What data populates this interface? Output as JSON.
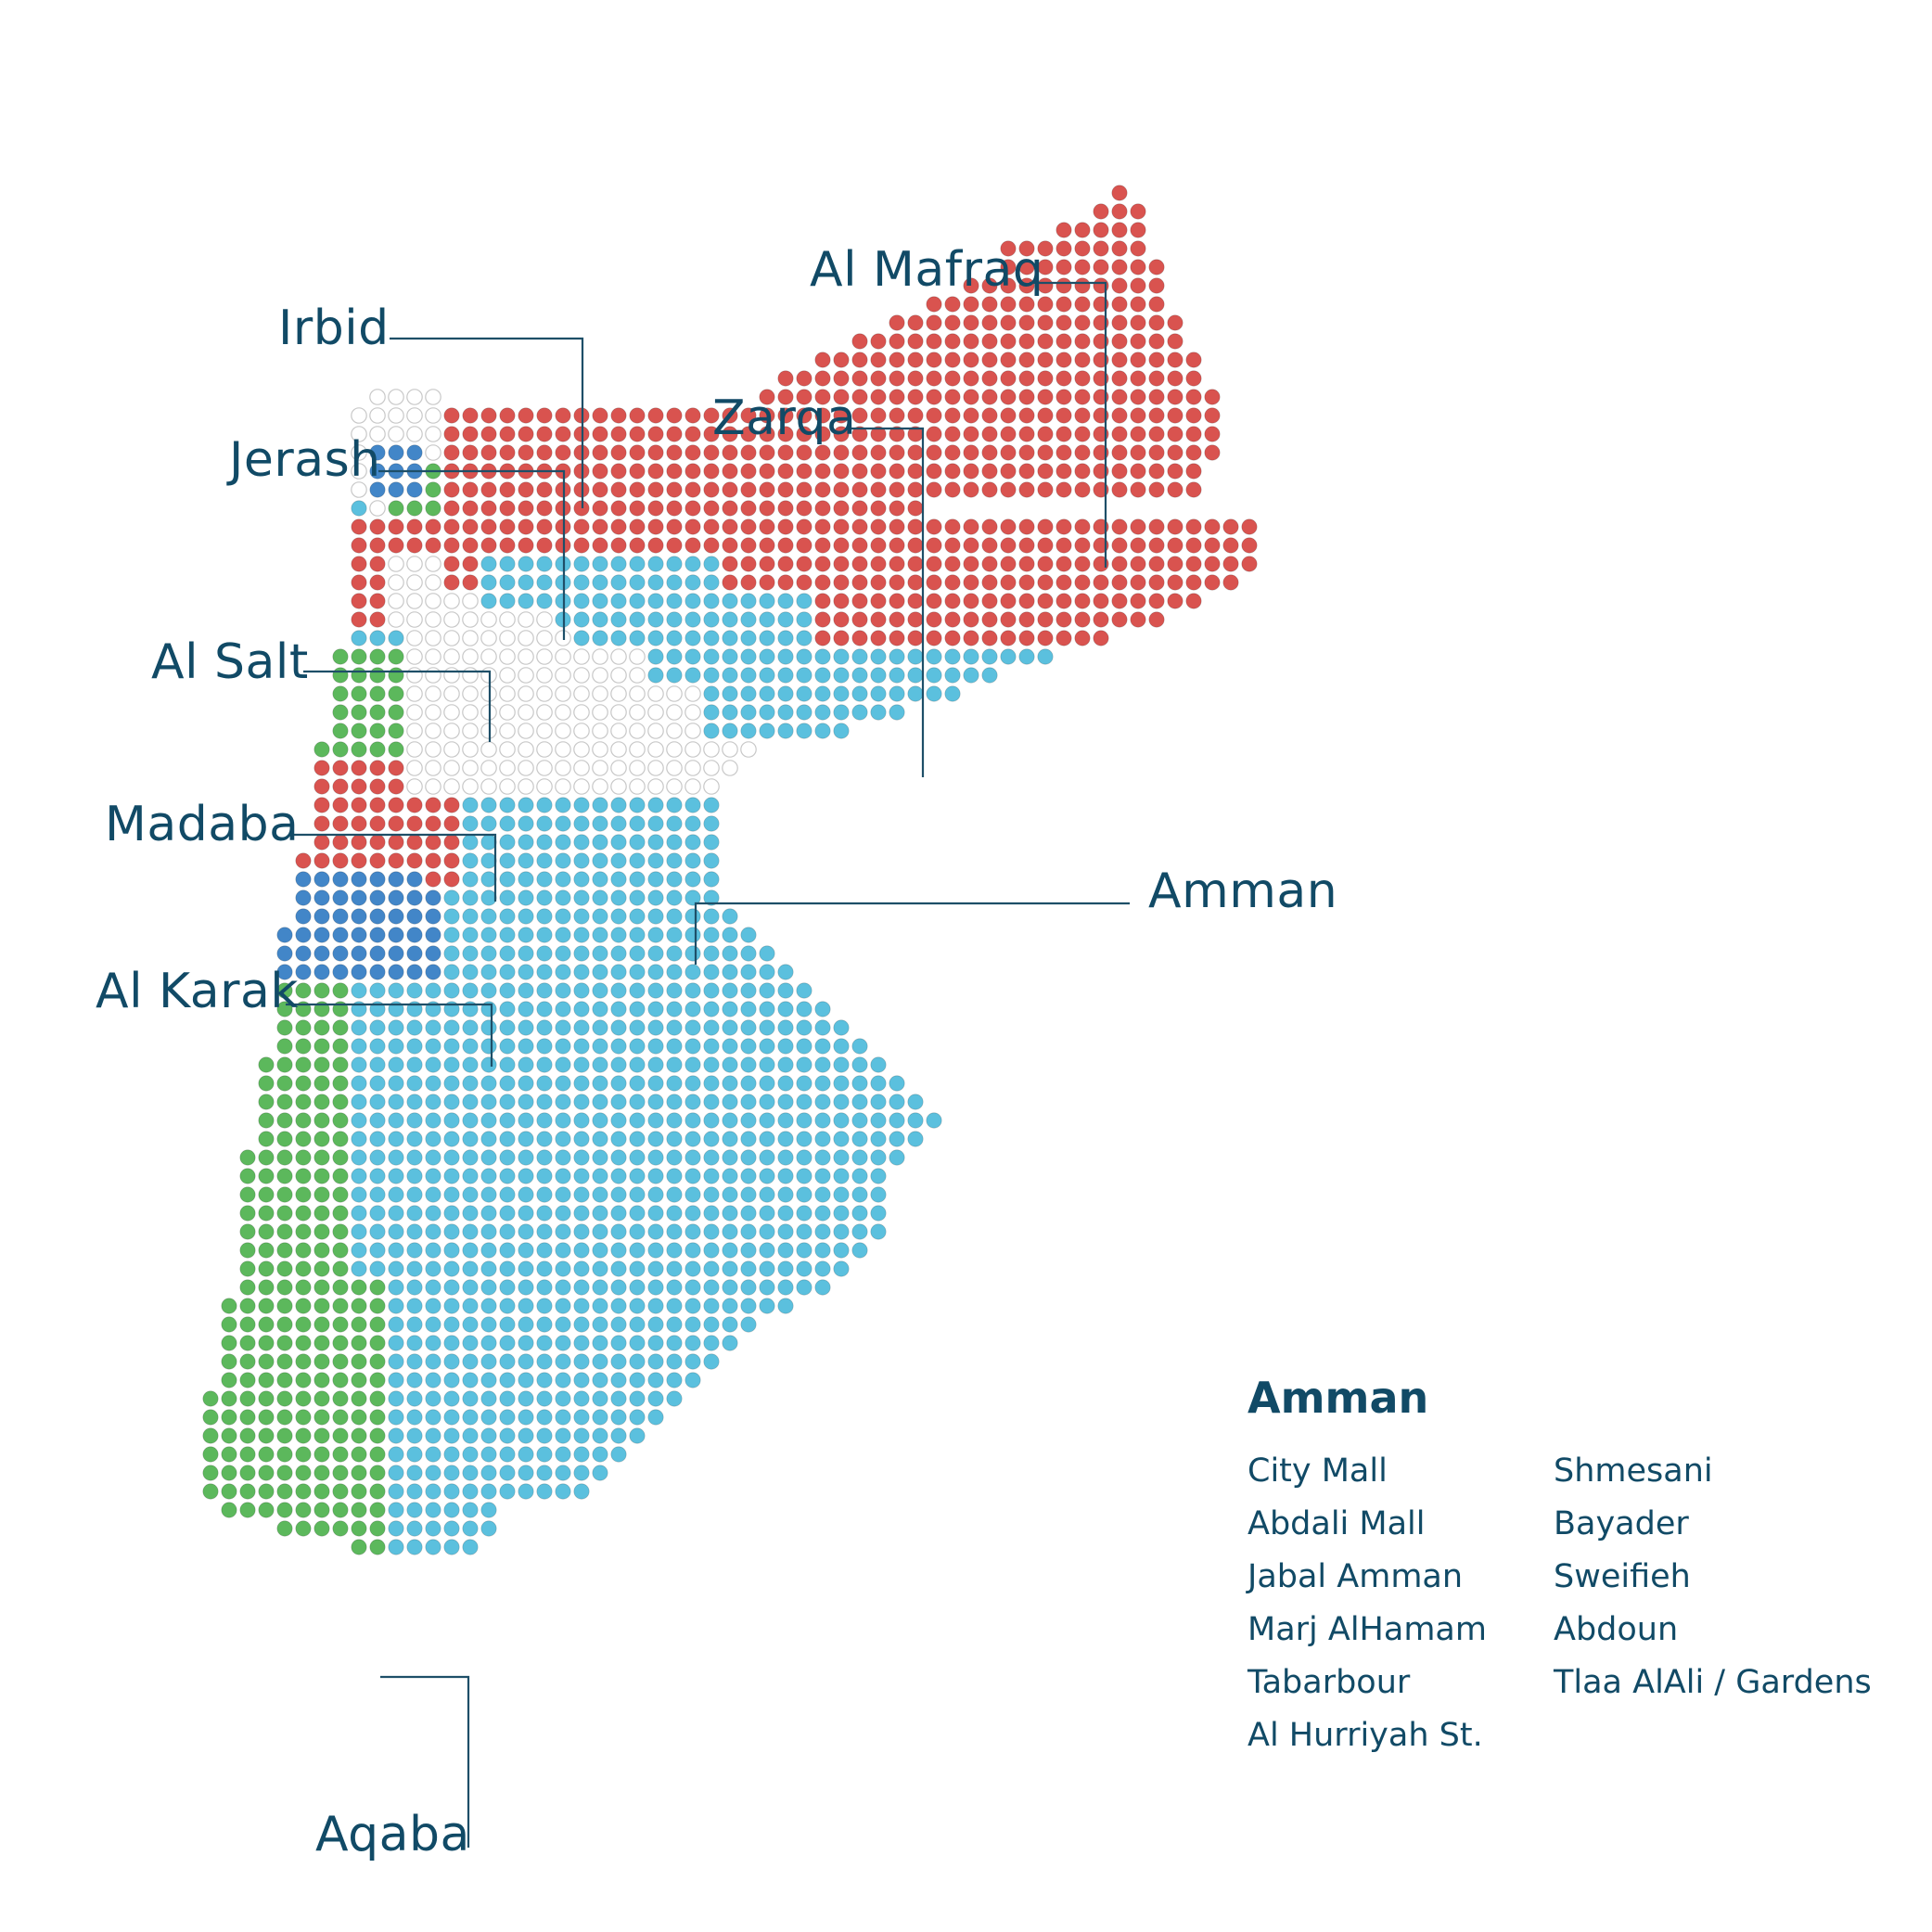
{
  "colors": {
    "red": "#d9534f",
    "light_blue": "#5bc0de",
    "dark_blue": "#4286c8",
    "green": "#5cb85c",
    "empty": "#ffffff",
    "empty_stroke": "#c8c8c8",
    "text": "#114a66"
  },
  "regions": [
    {
      "label": "Irbid"
    },
    {
      "label": "Jerash"
    },
    {
      "label": "Al Salt"
    },
    {
      "label": "Madaba"
    },
    {
      "label": "Al Karak"
    },
    {
      "label": "Aqaba"
    },
    {
      "label": "Al Mafraq"
    },
    {
      "label": "Zarqa"
    },
    {
      "label": "Amman"
    }
  ],
  "legend": {
    "title": "Amman",
    "col1": [
      "City Mall",
      "Abdali Mall",
      "Jabal Amman",
      "Marj AlHamam",
      "Tabarbour",
      "Al Hurriyah St."
    ],
    "col2": [
      "Shmesani",
      "Bayader",
      "Sweifieh",
      "Abdoun",
      "Tlaa AlAli / Gardens"
    ]
  }
}
